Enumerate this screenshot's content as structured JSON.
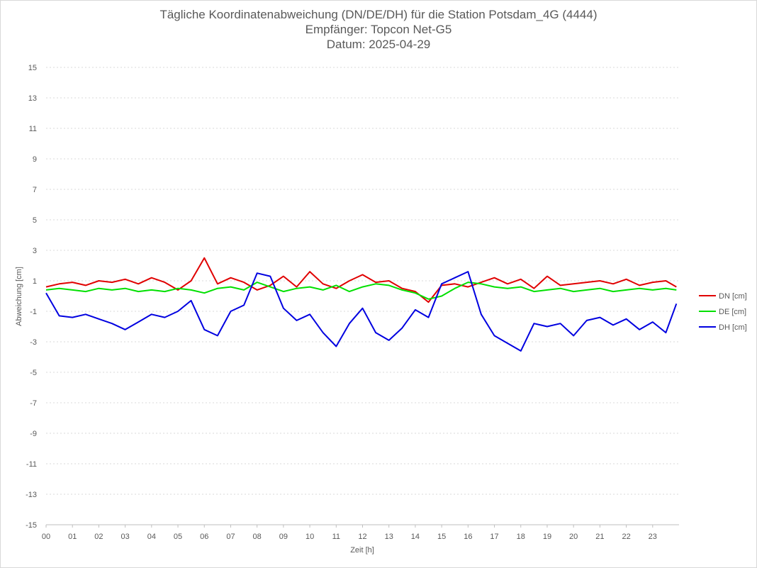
{
  "chart_data": {
    "type": "line",
    "title": "Tägliche Koordinatenabweichung (DN/DE/DH) für die Station Potsdam_4G (4444)",
    "subtitle_1": "Empfänger: Topcon Net-G5",
    "subtitle_2": "Datum: 2025-04-29",
    "xlabel": "Zeit [h]",
    "ylabel": "Abweichung [cm]",
    "xlim": [
      0,
      24
    ],
    "ylim": [
      -15,
      15
    ],
    "x_ticks": [
      "00",
      "01",
      "02",
      "03",
      "04",
      "05",
      "06",
      "07",
      "08",
      "09",
      "10",
      "11",
      "12",
      "13",
      "14",
      "15",
      "16",
      "17",
      "18",
      "19",
      "20",
      "21",
      "22",
      "23"
    ],
    "y_ticks": [
      "15",
      "13",
      "11",
      "9",
      "7",
      "5",
      "3",
      "1",
      "-1",
      "-3",
      "-5",
      "-7",
      "-9",
      "-11",
      "-13",
      "-15"
    ],
    "grid": true,
    "legend_position": "right",
    "x": [
      0,
      0.5,
      1,
      1.5,
      2,
      2.5,
      3,
      3.5,
      4,
      4.5,
      5,
      5.5,
      6,
      6.5,
      7,
      7.5,
      8,
      8.5,
      9,
      9.5,
      10,
      10.5,
      11,
      11.5,
      12,
      12.5,
      13,
      13.5,
      14,
      14.5,
      15,
      15.5,
      16,
      16.5,
      17,
      17.5,
      18,
      18.5,
      19,
      19.5,
      20,
      20.5,
      21,
      21.5,
      22,
      22.5,
      23,
      23.5,
      23.9
    ],
    "series": [
      {
        "name": "DN [cm]",
        "color": "#e00000",
        "values": [
          0.6,
          0.8,
          0.9,
          0.7,
          1.0,
          0.9,
          1.1,
          0.8,
          1.2,
          0.9,
          0.4,
          1.0,
          2.5,
          0.8,
          1.2,
          0.9,
          0.4,
          0.7,
          1.3,
          0.6,
          1.6,
          0.8,
          0.5,
          1.0,
          1.4,
          0.9,
          1.0,
          0.5,
          0.3,
          -0.4,
          0.7,
          0.8,
          0.6,
          0.9,
          1.2,
          0.8,
          1.1,
          0.5,
          1.3,
          0.7,
          0.8,
          0.9,
          1.0,
          0.8,
          1.1,
          0.7,
          0.9,
          1.0,
          0.6
        ]
      },
      {
        "name": "DE [cm]",
        "color": "#00e000",
        "values": [
          0.4,
          0.5,
          0.4,
          0.3,
          0.5,
          0.4,
          0.5,
          0.3,
          0.4,
          0.3,
          0.5,
          0.4,
          0.2,
          0.5,
          0.6,
          0.4,
          0.9,
          0.6,
          0.3,
          0.5,
          0.6,
          0.4,
          0.7,
          0.3,
          0.6,
          0.8,
          0.7,
          0.4,
          0.2,
          -0.2,
          0.0,
          0.5,
          0.9,
          0.8,
          0.6,
          0.5,
          0.6,
          0.3,
          0.4,
          0.5,
          0.3,
          0.4,
          0.5,
          0.3,
          0.4,
          0.5,
          0.4,
          0.5,
          0.4
        ]
      },
      {
        "name": "DH [cm]",
        "color": "#0000e0",
        "values": [
          0.2,
          -1.3,
          -1.4,
          -1.2,
          -1.5,
          -1.8,
          -2.2,
          -1.7,
          -1.2,
          -1.4,
          -1.0,
          -0.3,
          -2.2,
          -2.6,
          -1.0,
          -0.6,
          1.5,
          1.3,
          -0.8,
          -1.6,
          -1.2,
          -2.4,
          -3.3,
          -1.8,
          -0.8,
          -2.4,
          -2.9,
          -2.1,
          -0.9,
          -1.4,
          0.8,
          1.2,
          1.6,
          -1.2,
          -2.6,
          -3.1,
          -3.6,
          -1.8,
          -2.0,
          -1.8,
          -2.6,
          -1.6,
          -1.4,
          -1.9,
          -1.5,
          -2.2,
          -1.7,
          -2.4,
          -0.5
        ]
      }
    ]
  }
}
